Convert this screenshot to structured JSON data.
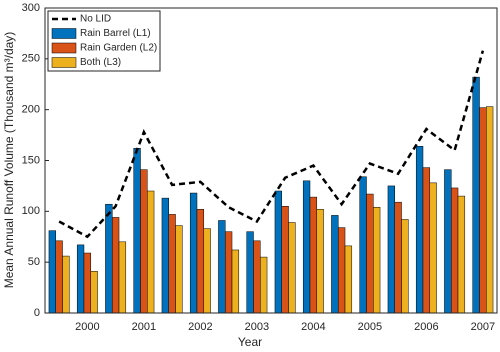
{
  "chart_data": {
    "type": "bar",
    "xlabel": "Year",
    "ylabel": "Mean Annual Runoff Volume (Thousand m³/day)",
    "categories": [
      null,
      "2000",
      null,
      "2001",
      null,
      "2002",
      null,
      "2003",
      null,
      "2004",
      null,
      "2005",
      null,
      "2006",
      null,
      "2007"
    ],
    "series": [
      {
        "name": "No LID",
        "type": "line",
        "color": "#000000",
        "values": [
          90,
          75,
          105,
          178,
          126,
          129,
          104,
          90,
          133,
          145,
          107,
          147,
          137,
          181,
          160,
          258
        ]
      },
      {
        "name": "Rain Barrel (L1)",
        "color": "#0072bd",
        "values": [
          81,
          67,
          107,
          162,
          113,
          118,
          91,
          80,
          120,
          130,
          96,
          134,
          125,
          164,
          141,
          232
        ]
      },
      {
        "name": "Rain Garden (L2)",
        "color": "#d95319",
        "values": [
          71,
          59,
          94,
          141,
          97,
          102,
          80,
          71,
          105,
          114,
          84,
          117,
          109,
          143,
          123,
          202
        ]
      },
      {
        "name": "Both (L3)",
        "color": "#edb120",
        "values": [
          56,
          41,
          70,
          120,
          86,
          83,
          62,
          55,
          89,
          102,
          66,
          104,
          92,
          128,
          115,
          203
        ]
      }
    ],
    "ylim": [
      0,
      300
    ],
    "yticks": [
      0,
      50,
      100,
      150,
      200,
      250,
      300
    ],
    "grid": false,
    "legend": "upper left"
  }
}
